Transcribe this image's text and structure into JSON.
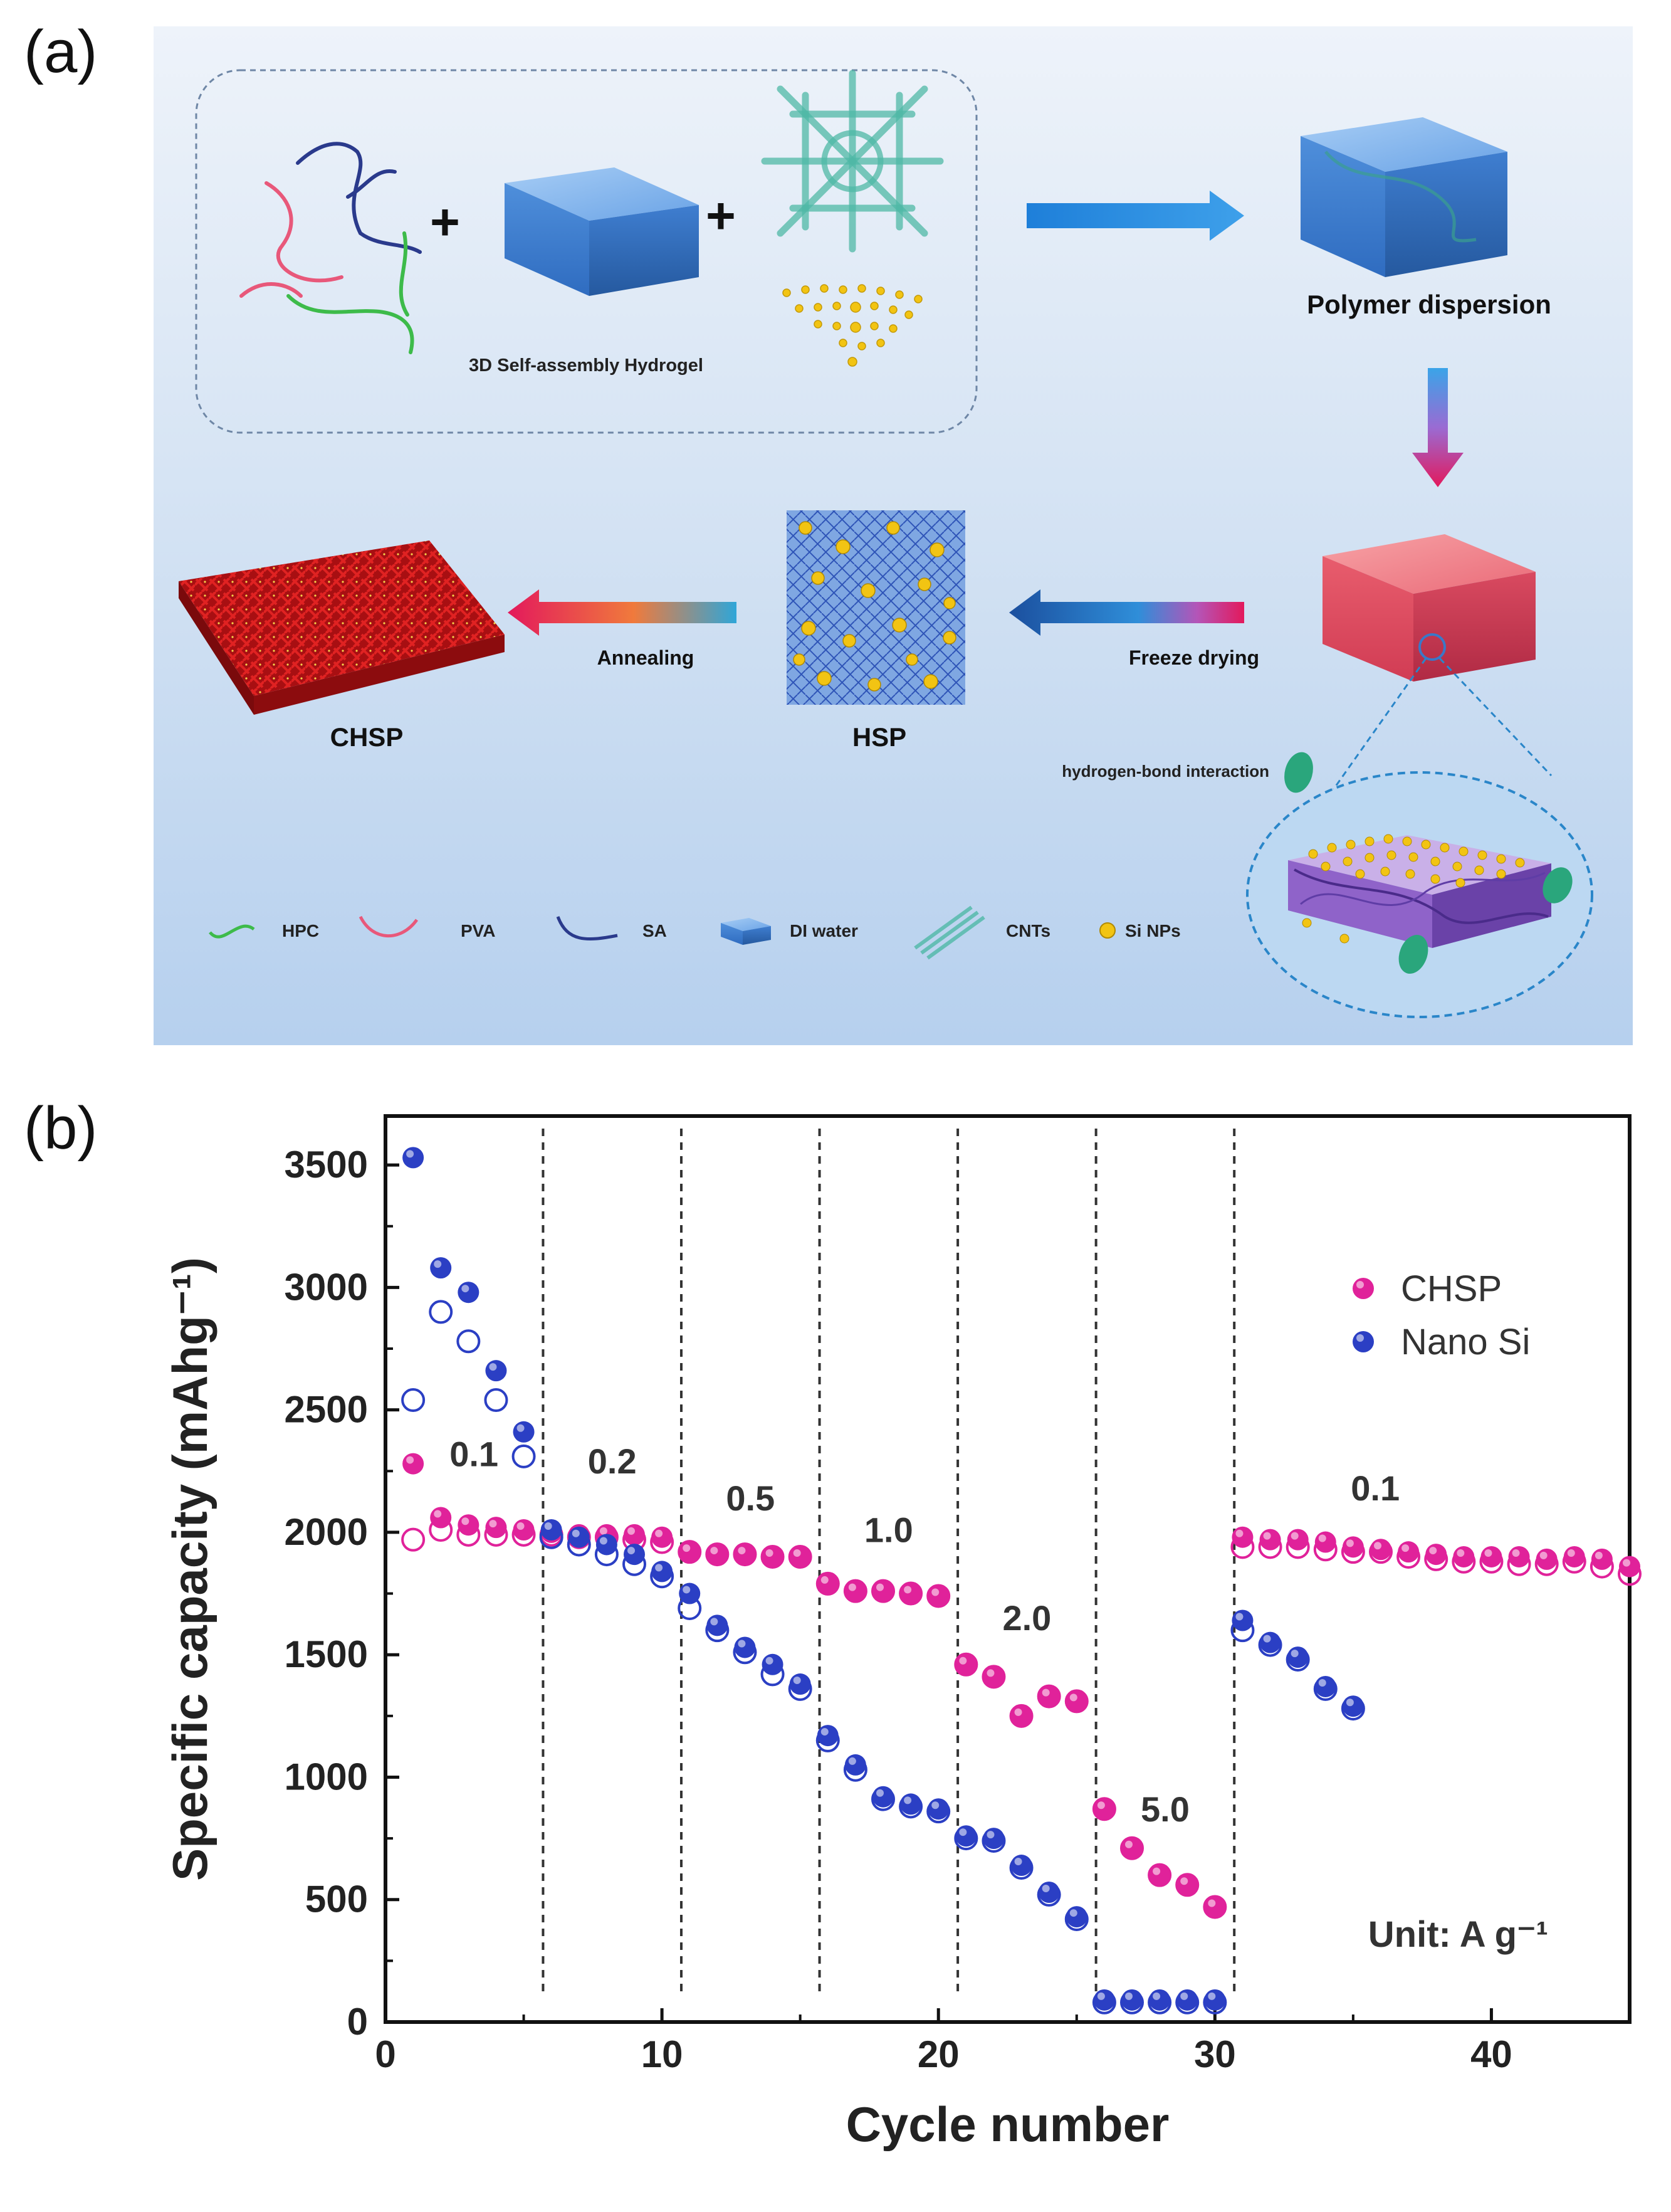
{
  "panel_a": {
    "label": "(a)",
    "hydrogel_caption": "3D Self-assembly Hydrogel",
    "plus": "+",
    "polymer_dispersion": "Polymer dispersion",
    "freeze_drying": "Freeze drying",
    "annealing": "Annealing",
    "hsp": "HSP",
    "chsp": "CHSP",
    "hbond": "hydrogen-bond interaction",
    "legend": {
      "hpc": "HPC",
      "pva": "PVA",
      "sa": "SA",
      "di_water": "DI water",
      "cnts": "CNTs",
      "si_nps": "Si NPs"
    },
    "colors": {
      "background": "#c9dcf2",
      "hpc": "#3dbb4a",
      "pva": "#e8587a",
      "sa": "#2a3a8c",
      "water": "#5c9ae0",
      "cnt": "#4fb8a6",
      "si": "#f2c413",
      "hbond": "#2aa67c",
      "chsp": "#c41414",
      "arrow_blue": "#2f7fd6",
      "arrow_pink": "#e4195a"
    }
  },
  "panel_b": {
    "label": "(b)",
    "unit_text": "Unit: A g⁻¹",
    "rate_labels": [
      "0.1",
      "0.2",
      "0.5",
      "1.0",
      "2.0",
      "5.0",
      "0.1"
    ]
  },
  "chart_data": {
    "type": "scatter",
    "xlabel": "Cycle number",
    "ylabel": "Specific capacity (mAhg⁻¹)",
    "xlim": [
      0,
      45
    ],
    "ylim": [
      0,
      3700
    ],
    "xticks": [
      0,
      10,
      20,
      30,
      40
    ],
    "yticks": [
      0,
      500,
      1000,
      1500,
      2000,
      2500,
      3000,
      3500
    ],
    "vertical_dividers_x": [
      5.7,
      10.7,
      15.7,
      20.7,
      25.7,
      30.7
    ],
    "rate_label_positions": [
      {
        "text": "0.1",
        "x": 3.2,
        "y": 2270
      },
      {
        "text": "0.2",
        "x": 8.2,
        "y": 2240
      },
      {
        "text": "0.5",
        "x": 13.2,
        "y": 2090
      },
      {
        "text": "1.0",
        "x": 18.2,
        "y": 1960
      },
      {
        "text": "2.0",
        "x": 23.2,
        "y": 1600
      },
      {
        "text": "5.0",
        "x": 28.2,
        "y": 820
      },
      {
        "text": "0.1",
        "x": 35.8,
        "y": 2130
      }
    ],
    "legend_position": "top-right",
    "grid": false,
    "series": [
      {
        "name": "CHSP",
        "color": "#e0229a",
        "x": [
          1,
          2,
          3,
          4,
          5,
          6,
          7,
          8,
          9,
          10,
          11,
          12,
          13,
          14,
          15,
          16,
          17,
          18,
          19,
          20,
          21,
          22,
          23,
          24,
          25,
          26,
          27,
          28,
          29,
          30,
          31,
          32,
          33,
          34,
          35,
          36,
          37,
          38,
          39,
          40,
          41,
          42,
          43,
          44,
          45
        ],
        "charge": [
          2280,
          2060,
          2030,
          2020,
          2010,
          2000,
          1990,
          1990,
          1990,
          1980,
          1920,
          1910,
          1910,
          1900,
          1900,
          1790,
          1760,
          1760,
          1750,
          1740,
          1460,
          1410,
          1250,
          1330,
          1310,
          870,
          710,
          600,
          560,
          470,
          1980,
          1970,
          1970,
          1960,
          1940,
          1930,
          1920,
          1910,
          1900,
          1900,
          1900,
          1890,
          1900,
          1890,
          1860
        ],
        "discharge": [
          1970,
          2010,
          1990,
          1990,
          1990,
          1990,
          1980,
          1980,
          1970,
          1960,
          1920,
          1910,
          1910,
          1900,
          1900,
          1790,
          1760,
          1760,
          1750,
          1740,
          1460,
          1410,
          1250,
          1330,
          1310,
          870,
          710,
          600,
          560,
          470,
          1940,
          1940,
          1940,
          1930,
          1920,
          1920,
          1900,
          1890,
          1880,
          1880,
          1870,
          1870,
          1880,
          1860,
          1830
        ]
      },
      {
        "name": "Nano Si",
        "color": "#2b3fc4",
        "x": [
          1,
          2,
          3,
          4,
          5,
          6,
          7,
          8,
          9,
          10,
          11,
          12,
          13,
          14,
          15,
          16,
          17,
          18,
          19,
          20,
          21,
          22,
          23,
          24,
          25,
          26,
          27,
          28,
          29,
          30,
          31,
          32,
          33,
          34,
          35
        ],
        "charge": [
          3530,
          3080,
          2980,
          2660,
          2410,
          2010,
          1980,
          1950,
          1910,
          1840,
          1750,
          1620,
          1530,
          1460,
          1380,
          1170,
          1050,
          920,
          890,
          870,
          760,
          750,
          640,
          530,
          430,
          90,
          90,
          90,
          90,
          90,
          1640,
          1550,
          1490,
          1370,
          1290
        ],
        "discharge": [
          2540,
          2900,
          2780,
          2540,
          2310,
          1980,
          1950,
          1910,
          1870,
          1820,
          1690,
          1600,
          1510,
          1420,
          1360,
          1150,
          1030,
          910,
          880,
          860,
          750,
          740,
          630,
          520,
          420,
          80,
          80,
          80,
          80,
          80,
          1600,
          1540,
          1480,
          1360,
          1280
        ]
      }
    ]
  }
}
